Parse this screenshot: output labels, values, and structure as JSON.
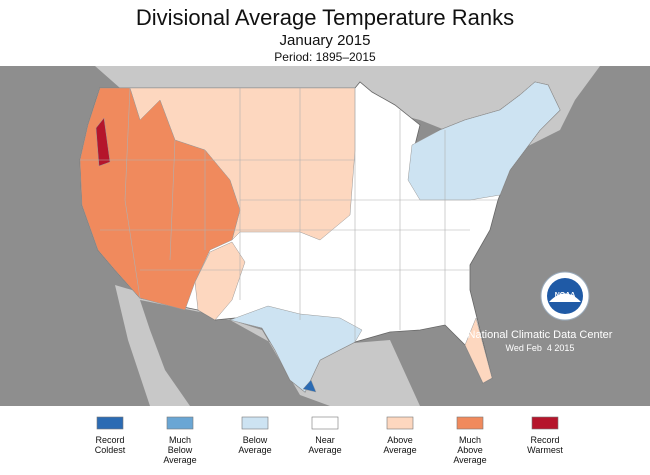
{
  "header": {
    "title": "Divisional Average Temperature Ranks",
    "subtitle": "January 2015",
    "period": "Period: 1895–2015"
  },
  "credit": {
    "organization": "National Climatic Data Center",
    "date": "Wed Feb  4 2015",
    "logo": "NOAA"
  },
  "legend": {
    "items": [
      {
        "lines": [
          "Record",
          "Coldest"
        ],
        "color": "#2b6bb3"
      },
      {
        "lines": [
          "Much",
          "Below",
          "Average"
        ],
        "color": "#6aa6d4"
      },
      {
        "lines": [
          "Below",
          "Average"
        ],
        "color": "#cde3f2"
      },
      {
        "lines": [
          "Near",
          "Average"
        ],
        "color": "#ffffff"
      },
      {
        "lines": [
          "Above",
          "Average"
        ],
        "color": "#fdd7bf"
      },
      {
        "lines": [
          "Much",
          "Above",
          "Average"
        ],
        "color": "#f08a5d"
      },
      {
        "lines": [
          "Record",
          "Warmest"
        ],
        "color": "#b5152b"
      }
    ]
  }
}
